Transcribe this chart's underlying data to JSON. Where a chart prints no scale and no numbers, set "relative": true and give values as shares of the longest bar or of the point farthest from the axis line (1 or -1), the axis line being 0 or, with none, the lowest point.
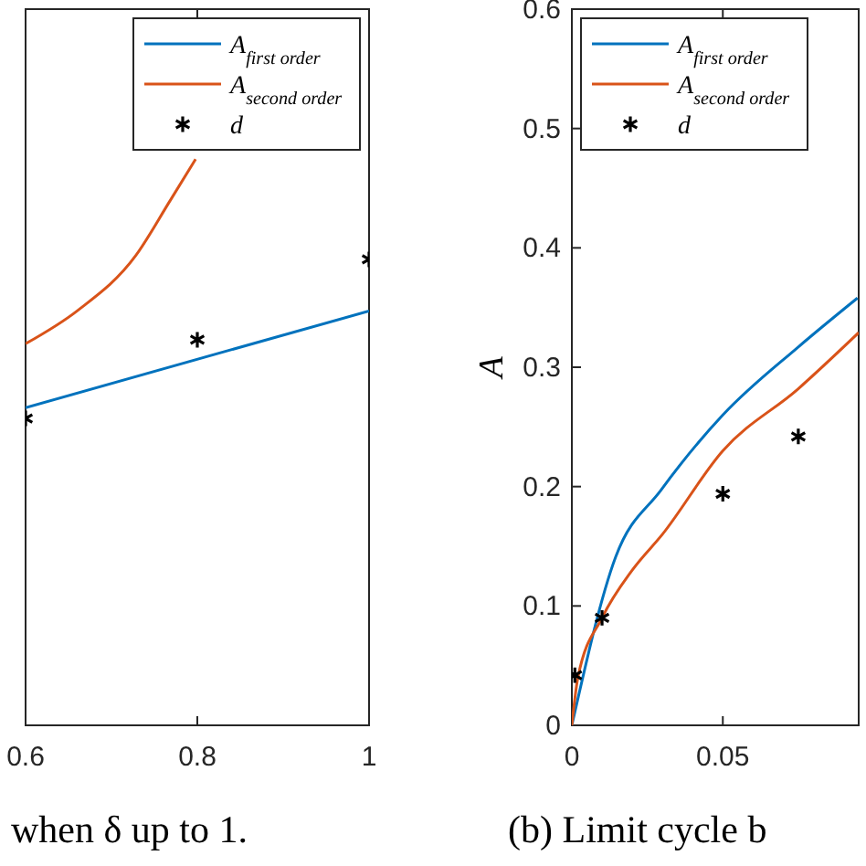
{
  "chart_data": [
    {
      "type": "line",
      "relative": true,
      "xlim": [
        0.6,
        1
      ],
      "xticks": [
        0.6,
        0.8,
        1
      ],
      "legend": "top right",
      "annotations": [
        "when δ up to 1."
      ],
      "series": [
        {
          "name": "A$_{first order}$",
          "color": "#0072bd",
          "x": [
            0.6,
            1
          ],
          "values": [
            0.561,
            0.732
          ]
        },
        {
          "name": "A$_{second order}$",
          "color": "#d95319",
          "x": [
            0.6,
            0.66,
            0.728,
            0.768,
            0.798
          ],
          "values": [
            0.674,
            0.732,
            0.829,
            0.926,
            1
          ]
        },
        {
          "name": "d",
          "type": "scatter",
          "marker": "cross",
          "color": "#000000",
          "x": [
            0.6,
            0.8,
            1
          ],
          "values": [
            0.542,
            0.681,
            0.823
          ]
        }
      ]
    },
    {
      "type": "line",
      "xlim": [
        0,
        0.095
      ],
      "xticks": [
        0,
        0.05
      ],
      "ylim": [
        0,
        0.6
      ],
      "yticks": [
        0,
        0.1,
        0.2,
        0.3,
        0.4,
        0.5,
        0.6
      ],
      "ylabel": "A",
      "legend": "top left",
      "annotations": [
        "(b) Limit cycle b"
      ],
      "series": [
        {
          "name": "A$_{first order}$",
          "color": "#0072bd",
          "x": [
            0,
            0.0145,
            0.0295,
            0.05,
            0.075,
            0.0946
          ],
          "values": [
            0,
            0.141,
            0.197,
            0.26,
            0.317,
            0.358
          ]
        },
        {
          "name": "A$_{second order}$",
          "color": "#d95319",
          "x": [
            0,
            0.002,
            0.01,
            0.02,
            0.03,
            0.05,
            0.075,
            0.095
          ],
          "values": [
            0,
            0.04,
            0.09,
            0.13,
            0.16,
            0.23,
            0.282,
            0.329
          ]
        },
        {
          "name": "d",
          "type": "scatter",
          "marker": "cross",
          "color": "#000000",
          "x": [
            0.001,
            0.01,
            0.05,
            0.075
          ],
          "values": [
            0.042,
            0.09,
            0.194,
            0.242
          ]
        }
      ]
    }
  ]
}
